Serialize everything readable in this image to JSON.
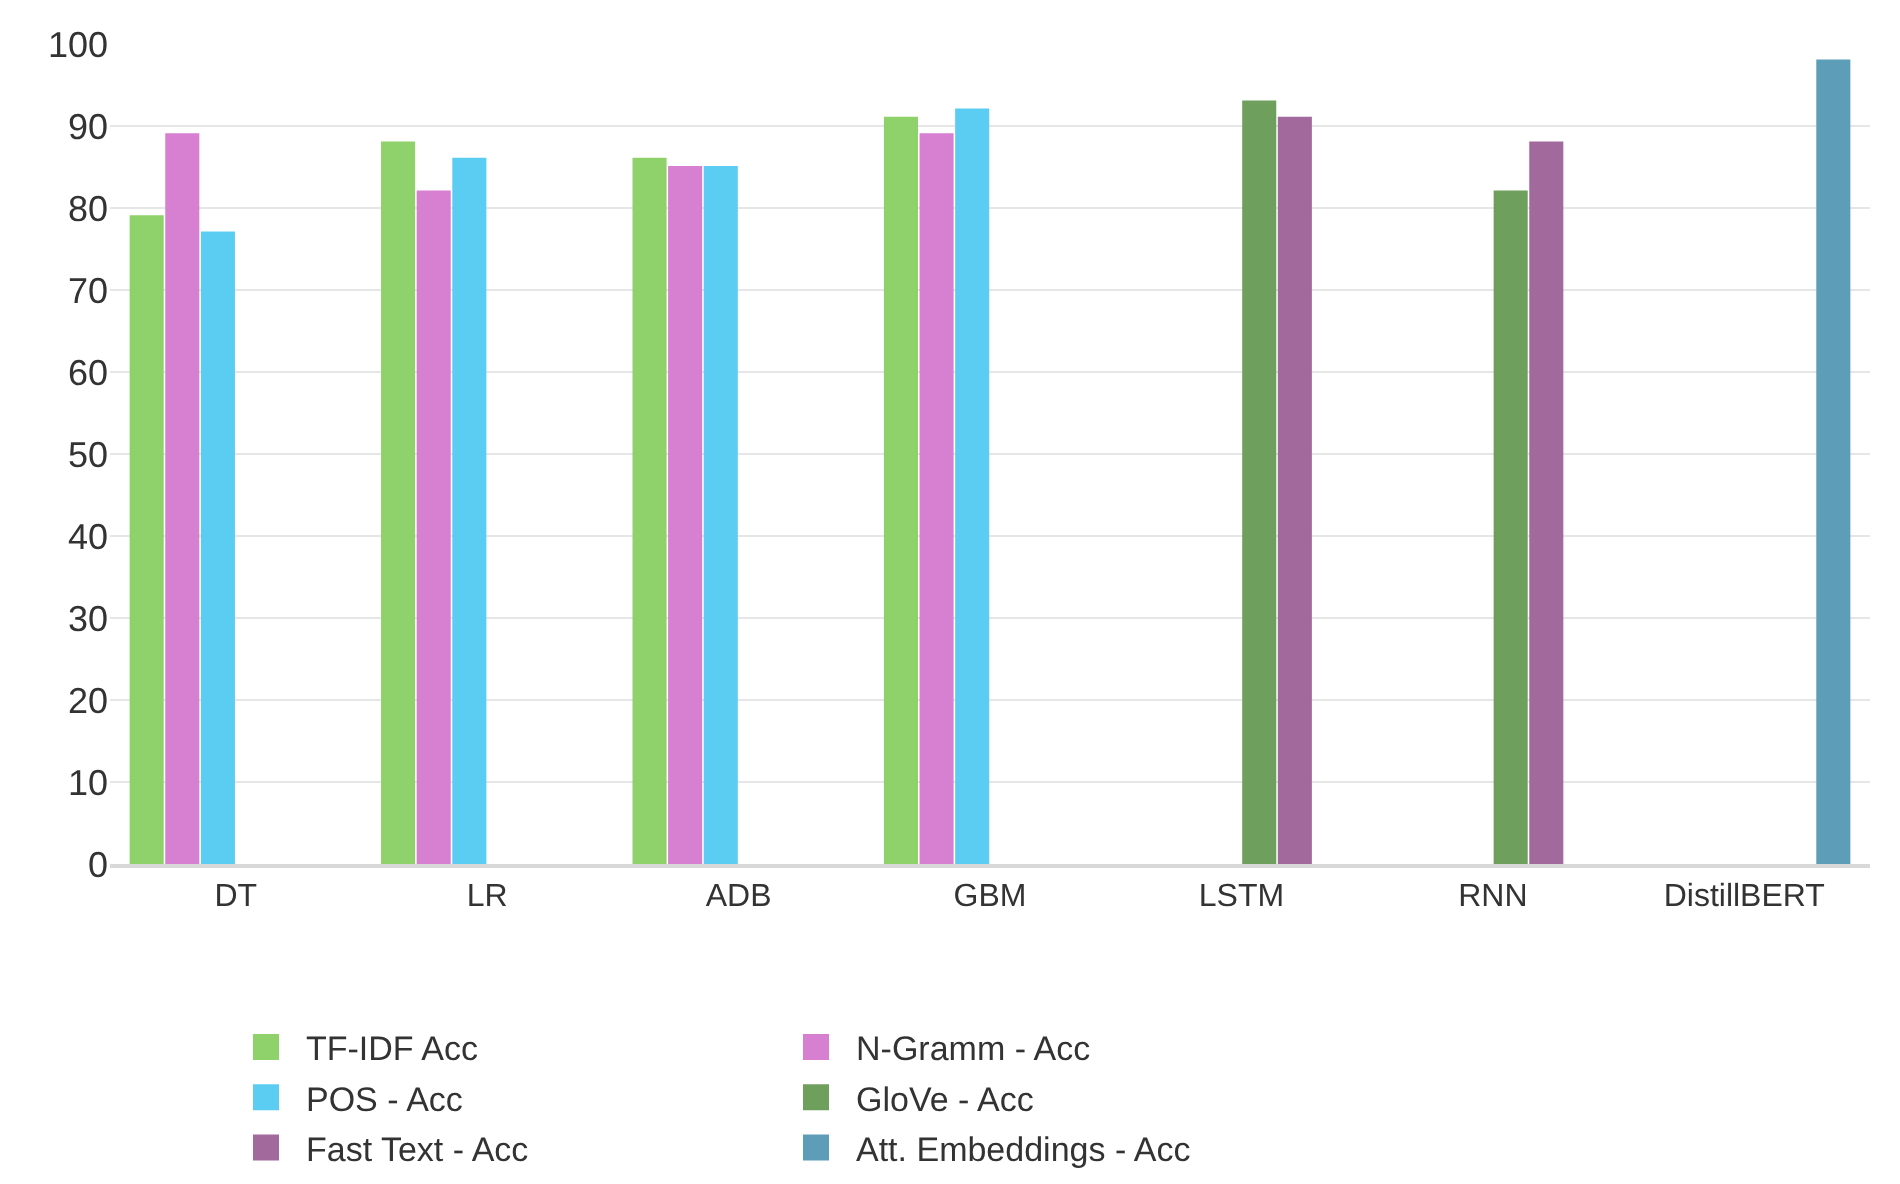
{
  "chart_data": {
    "type": "bar",
    "categories": [
      "DT",
      "LR",
      "ADB",
      "GBM",
      "LSTM",
      "RNN",
      "DistillBERT"
    ],
    "series": [
      {
        "name": "TF-IDF Acc",
        "color": "#8fd16a",
        "values": [
          79,
          88,
          86,
          91,
          null,
          null,
          null
        ]
      },
      {
        "name": "N-Gramm - Acc",
        "color": "#d77fd0",
        "values": [
          89,
          82,
          85,
          89,
          null,
          null,
          null
        ]
      },
      {
        "name": "POS - Acc",
        "color": "#5ccdf2",
        "values": [
          77,
          86,
          85,
          92,
          null,
          null,
          null
        ]
      },
      {
        "name": "GloVe - Acc",
        "color": "#6f9f5c",
        "values": [
          null,
          null,
          null,
          null,
          93,
          82,
          null
        ]
      },
      {
        "name": "Fast Text - Acc",
        "color": "#a26a9c",
        "values": [
          null,
          null,
          null,
          null,
          91,
          88,
          null
        ]
      },
      {
        "name": "Att. Embeddings - Acc",
        "color": "#5d9db8",
        "values": [
          null,
          null,
          null,
          null,
          null,
          null,
          98
        ]
      }
    ],
    "ylim": [
      0,
      100
    ],
    "yticks": [
      0,
      10,
      20,
      30,
      40,
      50,
      60,
      70,
      80,
      90,
      100
    ],
    "grid": "y",
    "legend": "bottom"
  }
}
